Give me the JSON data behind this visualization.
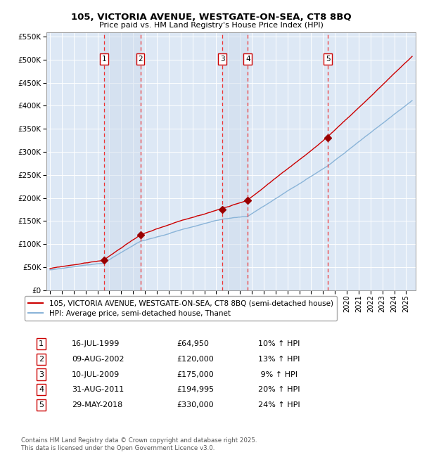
{
  "title": "105, VICTORIA AVENUE, WESTGATE-ON-SEA, CT8 8BQ",
  "subtitle": "Price paid vs. HM Land Registry's House Price Index (HPI)",
  "transactions": [
    {
      "num": 1,
      "date_label": "16-JUL-1999",
      "date_x": 1999.54,
      "price": 64950,
      "hpi_pct": "10% ↑ HPI"
    },
    {
      "num": 2,
      "date_label": "09-AUG-2002",
      "date_x": 2002.61,
      "price": 120000,
      "hpi_pct": "13% ↑ HPI"
    },
    {
      "num": 3,
      "date_label": "10-JUL-2009",
      "date_x": 2009.53,
      "price": 175000,
      "hpi_pct": "9% ↑ HPI"
    },
    {
      "num": 4,
      "date_label": "31-AUG-2011",
      "date_x": 2011.66,
      "price": 194995,
      "hpi_pct": "20% ↑ HPI"
    },
    {
      "num": 5,
      "date_label": "29-MAY-2018",
      "date_x": 2018.41,
      "price": 330000,
      "hpi_pct": "24% ↑ HPI"
    }
  ],
  "hpi_line_color": "#8ab4d8",
  "price_line_color": "#cc0000",
  "marker_color": "#990000",
  "dashed_line_color": "#ee3333",
  "shade_color": "#ccd9ec",
  "plot_bg_color": "#dde8f5",
  "ylim": [
    0,
    560000
  ],
  "yticks": [
    0,
    50000,
    100000,
    150000,
    200000,
    250000,
    300000,
    350000,
    400000,
    450000,
    500000,
    550000
  ],
  "xlim_start": 1994.7,
  "xlim_end": 2025.8,
  "footer": "Contains HM Land Registry data © Crown copyright and database right 2025.\nThis data is licensed under the Open Government Licence v3.0.",
  "legend_line1": "105, VICTORIA AVENUE, WESTGATE-ON-SEA, CT8 8BQ (semi-detached house)",
  "legend_line2": "HPI: Average price, semi-detached house, Thanet",
  "table_data": [
    [
      "1",
      "16-JUL-1999",
      "£64,950",
      "10% ↑ HPI"
    ],
    [
      "2",
      "09-AUG-2002",
      "£120,000",
      "13% ↑ HPI"
    ],
    [
      "3",
      "10-JUL-2009",
      "£175,000",
      " 9% ↑ HPI"
    ],
    [
      "4",
      "31-AUG-2011",
      "£194,995",
      "20% ↑ HPI"
    ],
    [
      "5",
      "29-MAY-2018",
      "£330,000",
      "24% ↑ HPI"
    ]
  ]
}
